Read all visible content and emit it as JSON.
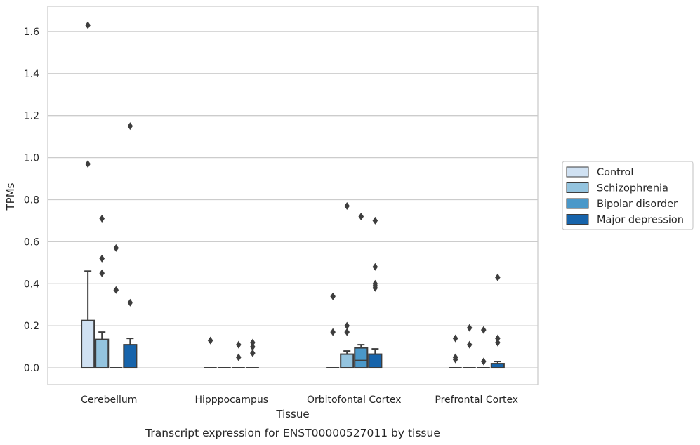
{
  "chart_data": {
    "type": "box",
    "title": "",
    "caption": "Transcript expression for ENST00000527011 by tissue",
    "xlabel": "Tissue",
    "ylabel": "TPMs",
    "ylim": [
      -0.08,
      1.72
    ],
    "yticks": [
      0.0,
      0.2,
      0.4,
      0.6,
      0.8,
      1.0,
      1.2,
      1.4,
      1.6
    ],
    "ytick_labels": [
      "0.0",
      "0.2",
      "0.4",
      "0.6",
      "0.8",
      "1.0",
      "1.2",
      "1.4",
      "1.6"
    ],
    "grid": true,
    "legend_position": "right",
    "categories": [
      "Cerebellum",
      "Hipppocampus",
      "Orbitofontal Cortex",
      "Prefrontal Cortex"
    ],
    "series": [
      {
        "name": "Control",
        "color": "#d0e1f2",
        "boxes": [
          {
            "q1": 0.0,
            "median": 0.0,
            "q3": 0.225,
            "whisker_low": 0.0,
            "whisker_high": 0.46,
            "outliers": [
              1.63,
              0.97
            ]
          },
          {
            "q1": 0.0,
            "median": 0.0,
            "q3": 0.0,
            "whisker_low": 0.0,
            "whisker_high": 0.0,
            "outliers": [
              0.13
            ]
          },
          {
            "q1": 0.0,
            "median": 0.0,
            "q3": 0.0,
            "whisker_low": 0.0,
            "whisker_high": 0.0,
            "outliers": [
              0.34,
              0.17
            ]
          },
          {
            "q1": 0.0,
            "median": 0.0,
            "q3": 0.0,
            "whisker_low": 0.0,
            "whisker_high": 0.0,
            "outliers": [
              0.14,
              0.05,
              0.04
            ]
          }
        ]
      },
      {
        "name": "Schizophrenia",
        "color": "#94c4df",
        "boxes": [
          {
            "q1": 0.0,
            "median": 0.0,
            "q3": 0.135,
            "whisker_low": 0.0,
            "whisker_high": 0.17,
            "outliers": [
              0.71,
              0.52,
              0.45
            ]
          },
          {
            "q1": 0.0,
            "median": 0.0,
            "q3": 0.0,
            "whisker_low": 0.0,
            "whisker_high": 0.0,
            "outliers": []
          },
          {
            "q1": 0.0,
            "median": 0.0,
            "q3": 0.065,
            "whisker_low": 0.0,
            "whisker_high": 0.08,
            "outliers": [
              0.77,
              0.2,
              0.17
            ]
          },
          {
            "q1": 0.0,
            "median": 0.0,
            "q3": 0.0,
            "whisker_low": 0.0,
            "whisker_high": 0.0,
            "outliers": [
              0.19,
              0.11
            ]
          }
        ]
      },
      {
        "name": "Bipolar disorder",
        "color": "#4a98c9",
        "boxes": [
          {
            "q1": 0.0,
            "median": 0.0,
            "q3": 0.0,
            "whisker_low": 0.0,
            "whisker_high": 0.0,
            "outliers": [
              0.57,
              0.37
            ]
          },
          {
            "q1": 0.0,
            "median": 0.0,
            "q3": 0.0,
            "whisker_low": 0.0,
            "whisker_high": 0.0,
            "outliers": [
              0.11,
              0.05
            ]
          },
          {
            "q1": 0.0,
            "median": 0.035,
            "q3": 0.095,
            "whisker_low": 0.0,
            "whisker_high": 0.11,
            "outliers": [
              0.72
            ]
          },
          {
            "q1": 0.0,
            "median": 0.0,
            "q3": 0.0,
            "whisker_low": 0.0,
            "whisker_high": 0.0,
            "outliers": [
              0.18,
              0.03
            ]
          }
        ]
      },
      {
        "name": "Major depression",
        "color": "#1764ab",
        "boxes": [
          {
            "q1": 0.0,
            "median": 0.0,
            "q3": 0.11,
            "whisker_low": 0.0,
            "whisker_high": 0.14,
            "outliers": [
              1.15,
              0.31
            ]
          },
          {
            "q1": 0.0,
            "median": 0.0,
            "q3": 0.0,
            "whisker_low": 0.0,
            "whisker_high": 0.0,
            "outliers": [
              0.12,
              0.1,
              0.07
            ]
          },
          {
            "q1": 0.0,
            "median": 0.0,
            "q3": 0.065,
            "whisker_low": 0.0,
            "whisker_high": 0.09,
            "outliers": [
              0.7,
              0.48,
              0.4,
              0.39,
              0.38
            ]
          },
          {
            "q1": 0.0,
            "median": 0.0,
            "q3": 0.02,
            "whisker_low": 0.0,
            "whisker_high": 0.03,
            "outliers": [
              0.43,
              0.14,
              0.12
            ]
          }
        ]
      }
    ]
  }
}
